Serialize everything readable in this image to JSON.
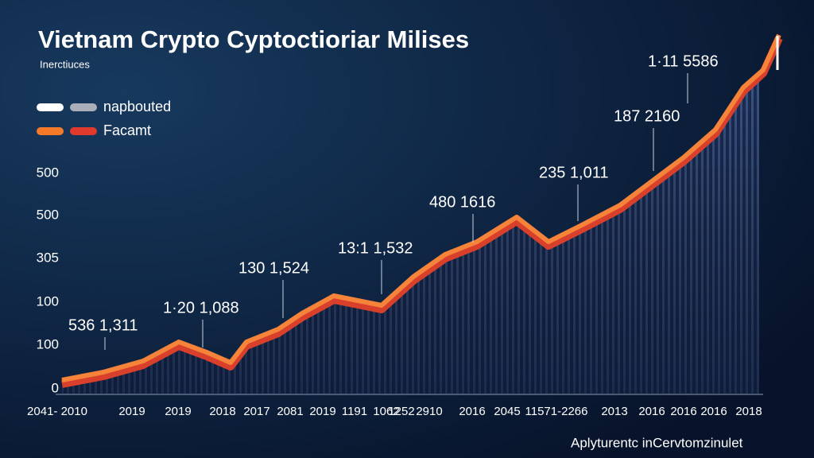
{
  "title": "Vietnam Crypto Cyptoctioriar Milises",
  "subtitle": "Inerctiuces",
  "legend": [
    {
      "name": "napbouted",
      "colors": [
        "#ffffff",
        "#a9aeb8"
      ]
    },
    {
      "name": "Facamt",
      "colors": [
        "#f47a2a",
        "#e03a2e"
      ]
    }
  ],
  "y_labels": [
    "500",
    "500",
    "305",
    "100",
    "100",
    "0"
  ],
  "x_labels": [
    "2041- 2010",
    "2019",
    "2019",
    "2018",
    "2017",
    "2081",
    "2019",
    "1191",
    "1062",
    "1252",
    "2910",
    "2016",
    "2045",
    "11571-2266",
    "2013",
    "2016",
    "2016",
    "2016",
    "2018"
  ],
  "annotations": [
    "536 1,311",
    "1·20 1,088",
    "130 1,524",
    "13:1 1,532",
    "480 1616",
    "235 1,011",
    "187 2160",
    "1·11 5586"
  ],
  "watermark": "Aplyturentc inCervtomzinulet"
}
